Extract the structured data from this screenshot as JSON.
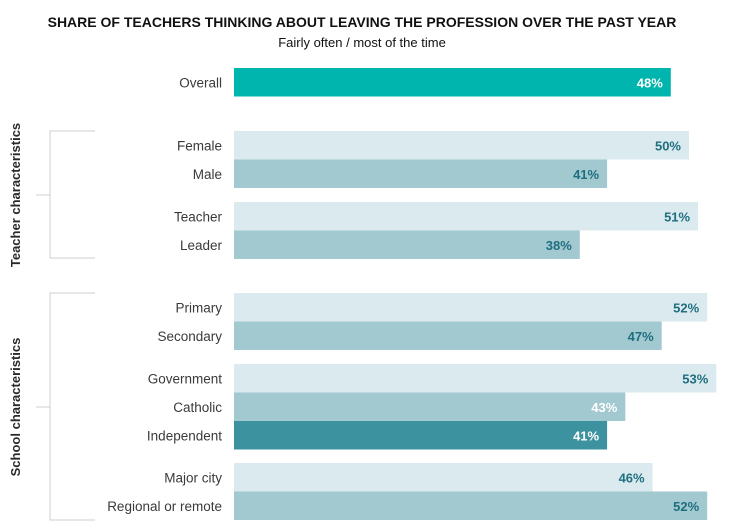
{
  "chart_data": {
    "type": "bar",
    "orientation": "horizontal",
    "title": "SHARE OF TEACHERS THINKING ABOUT LEAVING THE PROFESSION OVER THE PAST YEAR",
    "subtitle": "Fairly often / most of the time",
    "xlim": [
      0,
      100
    ],
    "grid": false,
    "legend": "none",
    "value_format": "{v}%",
    "groups": [
      {
        "label": "",
        "categories": [
          "Overall"
        ]
      },
      {
        "label": "Teacher characteristics",
        "categories": [
          "Female",
          "Male",
          "Teacher",
          "Leader"
        ]
      },
      {
        "label": "School characteristics",
        "categories": [
          "Primary",
          "Secondary",
          "Government",
          "Catholic",
          "Independent",
          "Major city",
          "Regional or remote"
        ]
      }
    ],
    "categories": [
      "Overall",
      "Female",
      "Male",
      "Teacher",
      "Leader",
      "Primary",
      "Secondary",
      "Government",
      "Catholic",
      "Independent",
      "Major city",
      "Regional or remote"
    ],
    "values": [
      48,
      50,
      41,
      51,
      38,
      52,
      47,
      53,
      43,
      41,
      46,
      52
    ],
    "bar_colors": [
      "#00b5ad",
      "#dbeaee",
      "#a2c8d0",
      "#dbeaee",
      "#a2c8d0",
      "#dbeaee",
      "#a2c8d0",
      "#dbeaee",
      "#a2c8d0",
      "#3d929f",
      "#dbeaee",
      "#a2c8d0"
    ],
    "label_colors": [
      "#ffffff",
      "#1f6f80",
      "#1f6f80",
      "#1f6f80",
      "#1f6f80",
      "#1f6f80",
      "#1f6f80",
      "#1f6f80",
      "#ffffff",
      "#ffffff",
      "#1f6f80",
      "#1f6f80"
    ]
  }
}
